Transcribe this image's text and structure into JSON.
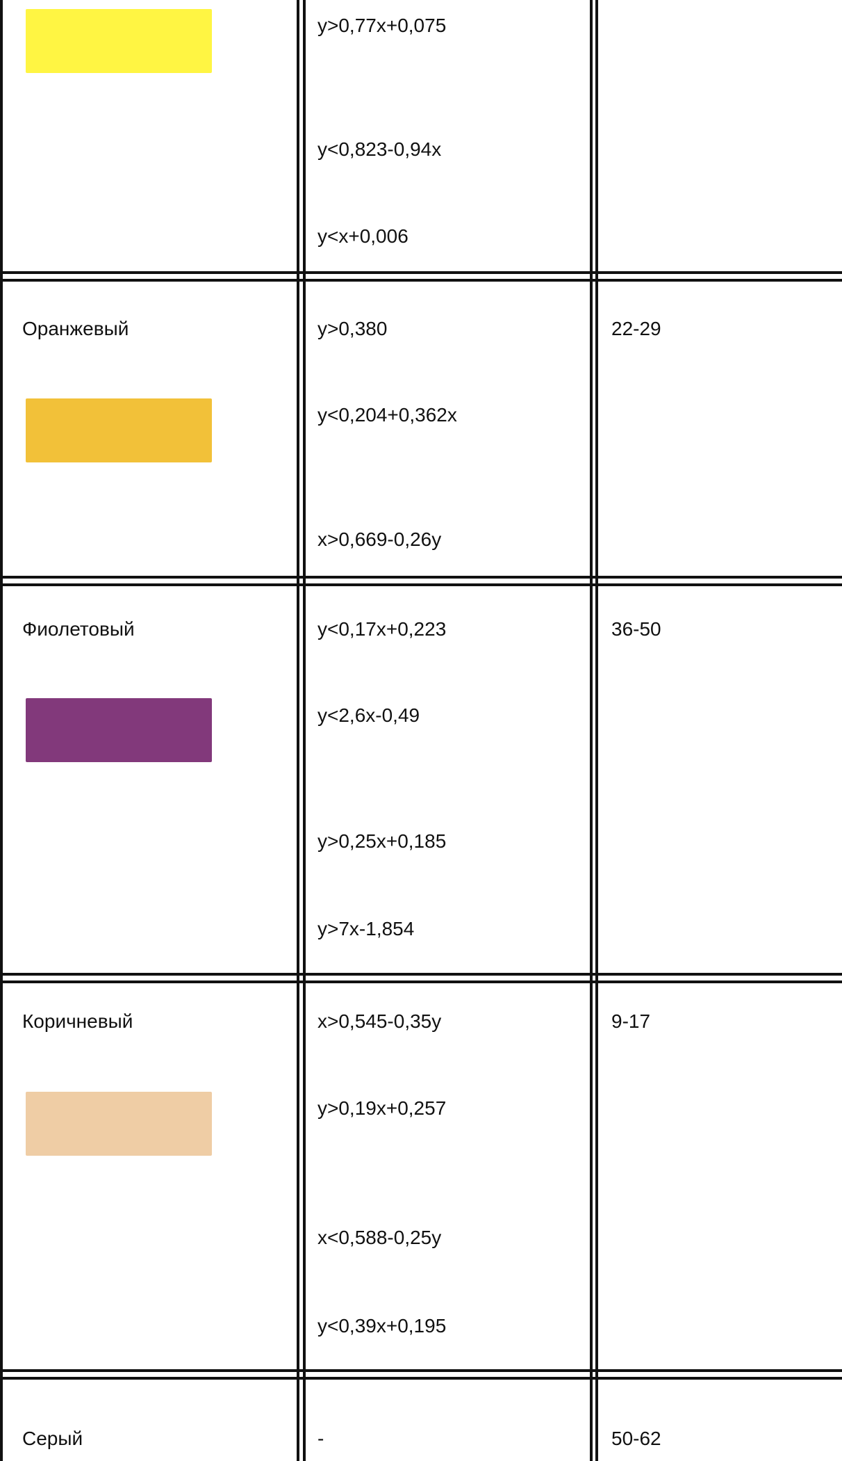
{
  "table": {
    "rows": [
      {
        "color_name": "",
        "swatch_color": "#fff543",
        "conditions": [
          "y>0,77x+0,075",
          "y<0,823-0,94x",
          "y<x+0,006"
        ],
        "range": ""
      },
      {
        "color_name": "Оранжевый",
        "swatch_color": "#f2c139",
        "conditions": [
          "y>0,380",
          "y<0,204+0,362x",
          "x>0,669-0,26y"
        ],
        "range": "22-29"
      },
      {
        "color_name": "Фиолетовый",
        "swatch_color": "#82397b",
        "conditions": [
          "y<0,17x+0,223",
          "y<2,6x-0,49",
          "y>0,25x+0,185",
          "y>7x-1,854"
        ],
        "range": "36-50"
      },
      {
        "color_name": "Коричневый",
        "swatch_color": "#efcda5",
        "conditions": [
          "x>0,545-0,35y",
          "y>0,19x+0,257",
          "x<0,588-0,25y",
          "y<0,39x+0,195"
        ],
        "range": "9-17"
      },
      {
        "color_name": "Серый",
        "swatch_color": "",
        "conditions": [
          "-"
        ],
        "range": "50-62"
      }
    ]
  }
}
